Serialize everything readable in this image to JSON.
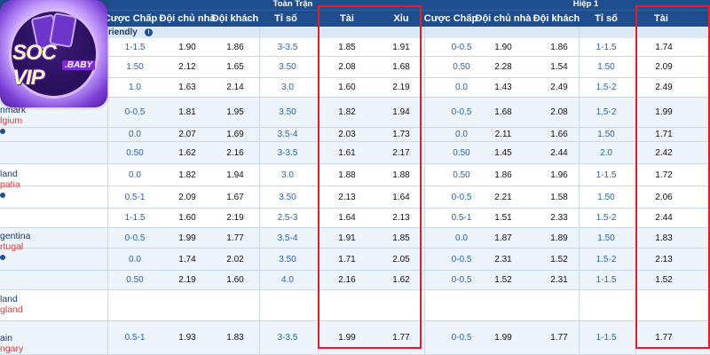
{
  "logo": {
    "primary": "SOC",
    "secondary": "VIP",
    "suffix": ".BABY"
  },
  "header": {
    "group_full": "Toàn Trận",
    "group_half": "Hiệp 1",
    "columns_full": [
      "Cược Chấp",
      "Đội chủ nhà",
      "Đội khách",
      "Tỉ số",
      "Tài",
      "Xỉu"
    ],
    "columns_half": [
      "Cược Chấp",
      "Đội chủ nhà",
      "Đội khách",
      "Tỉ số",
      "Tài"
    ]
  },
  "league": {
    "label": "riendly",
    "icon": "info-icon"
  },
  "teams": [
    {
      "home": "nmark",
      "away": "lgium"
    },
    {
      "home": "land",
      "away": "patia"
    },
    {
      "home": "gentina",
      "away": "rtugal"
    },
    {
      "home": "land",
      "away": "gland"
    },
    {
      "home": "ain",
      "away": "ngary"
    }
  ],
  "rows": [
    [
      "1-1.5",
      "1.90",
      "1.86",
      "3-3.5",
      "1.85",
      "1.91",
      "0-0.5",
      "1.90",
      "1.86",
      "1-1.5",
      "1.74"
    ],
    [
      "1.50",
      "2.12",
      "1.65",
      "3.50",
      "2.08",
      "1.68",
      "0.50",
      "2.28",
      "1.54",
      "1.50",
      "2.09"
    ],
    [
      "1.0",
      "1.63",
      "2.14",
      "3.0",
      "1.60",
      "2.19",
      "0.0",
      "1.43",
      "2.49",
      "1.5-2",
      "2.49"
    ],
    [
      "0-0.5",
      "1.81",
      "1.95",
      "3.50",
      "1.82",
      "1.94",
      "0-0.5",
      "1.68",
      "2.08",
      "1.5-2",
      "1.99"
    ],
    [
      "0.0",
      "2.07",
      "1.69",
      "3.5-4",
      "2.03",
      "1.73",
      "0.0",
      "2.11",
      "1.66",
      "1.50",
      "1.71"
    ],
    [
      "0.50",
      "1.62",
      "2.16",
      "3-3.5",
      "1.61",
      "2.17",
      "0.50",
      "1.45",
      "2.44",
      "2.0",
      "2.42"
    ],
    [
      "0.0",
      "1.82",
      "1.94",
      "3.0",
      "1.88",
      "1.88",
      "0.50",
      "1.86",
      "1.96",
      "1-1.5",
      "1.72"
    ],
    [
      "0.5-1",
      "2.09",
      "1.67",
      "3.50",
      "2.13",
      "1.64",
      "0-0.5",
      "2.21",
      "1.58",
      "1.50",
      "2.06"
    ],
    [
      "1-1.5",
      "1.60",
      "2.19",
      "2.5-3",
      "1.64",
      "2.13",
      "0.5-1",
      "1.51",
      "2.33",
      "1.5-2",
      "2.44"
    ],
    [
      "0-0.5",
      "1.99",
      "1.77",
      "3.5-4",
      "1.91",
      "1.85",
      "0.0",
      "1.87",
      "1.89",
      "1.50",
      "1.83"
    ],
    [
      "0.0",
      "1.74",
      "2.02",
      "3.50",
      "1.71",
      "2.05",
      "0-0.5",
      "2.31",
      "1.52",
      "1.5-2",
      "2.13"
    ],
    [
      "0.50",
      "2.19",
      "1.60",
      "4.0",
      "2.16",
      "1.62",
      "0-0.5",
      "1.52",
      "2.31",
      "1-1.5",
      "1.52"
    ],
    [
      "",
      "",
      "",
      "",
      "",
      "",
      "",
      "",
      "",
      "",
      ""
    ],
    [
      "0.5-1",
      "1.93",
      "1.83",
      "3-3.5",
      "1.99",
      "1.77",
      "0-0.5",
      "1.99",
      "1.77",
      "1-1.5",
      "1.77"
    ]
  ],
  "colors": {
    "header": "#1f4e8f",
    "accent_blue": "#2a63b4",
    "highlight": "#e11d2a",
    "row_alt": "#eef4fb"
  }
}
